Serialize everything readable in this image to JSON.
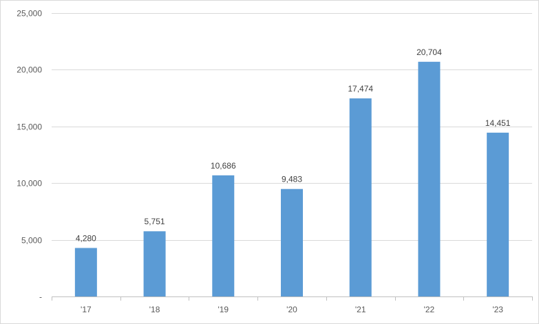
{
  "chart_data": {
    "type": "bar",
    "title": "",
    "xlabel": "",
    "ylabel": "",
    "categories": [
      "'17",
      "'18",
      "'19",
      "'20",
      "'21",
      "'22",
      "'23"
    ],
    "values": [
      4280,
      5751,
      10686,
      9483,
      17474,
      20704,
      14451
    ],
    "data_labels": [
      "4,280",
      "5,751",
      "10,686",
      "9,483",
      "17,474",
      "20,704",
      "14,451"
    ],
    "ylim": [
      0,
      25000
    ],
    "y_ticks": [
      0,
      5000,
      10000,
      15000,
      20000,
      25000
    ],
    "y_tick_labels": [
      "-",
      "5,000",
      "10,000",
      "15,000",
      "20,000",
      "25,000"
    ],
    "grid": true,
    "legend": "none",
    "colors": {
      "bar": "#5b9bd5",
      "grid": "#d9d9d9",
      "axis": "#bfbfbf"
    }
  }
}
